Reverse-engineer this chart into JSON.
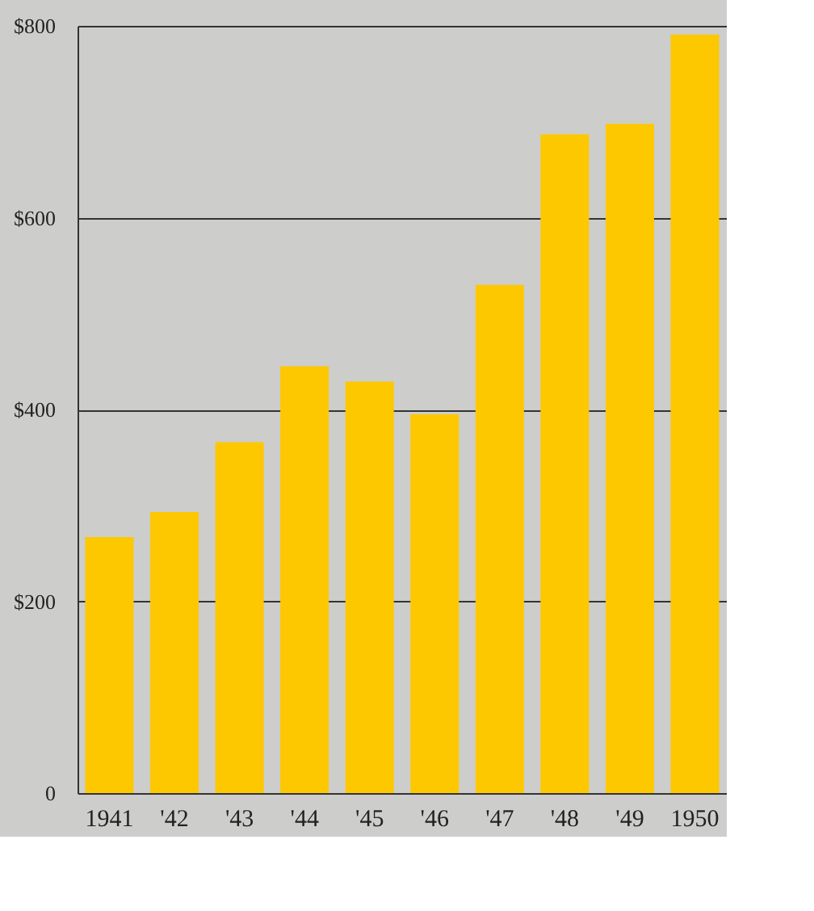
{
  "chart_data": {
    "type": "bar",
    "categories": [
      "1941",
      "'42",
      "'43",
      "'44",
      "'45",
      "'46",
      "'47",
      "'48",
      "'49",
      "1950"
    ],
    "values": [
      267,
      293,
      366,
      445,
      429,
      395,
      530,
      687,
      698,
      791
    ],
    "color": "#fdc800",
    "ylim": [
      0,
      800
    ],
    "yticks": [
      0,
      {
        "value": 200,
        "label": "$200"
      },
      {
        "value": 400,
        "label": "$400"
      },
      {
        "value": 600,
        "label": "$600"
      },
      {
        "value": 800,
        "label": "$800"
      }
    ],
    "grid": "y"
  }
}
